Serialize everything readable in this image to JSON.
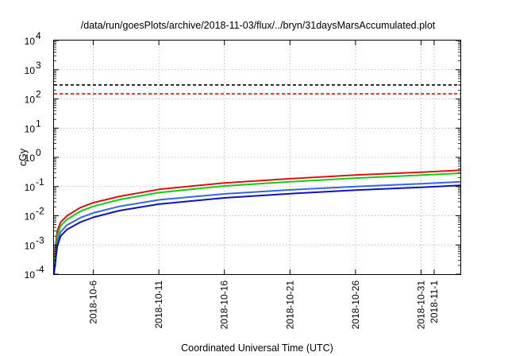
{
  "chart_data": {
    "type": "line",
    "title": "/data/run/goesPlots/archive/2018-11-03/flux/../bryn/31daysMarsAccumulated.plot",
    "xlabel": "Coordinated Universal Time (UTC)",
    "ylabel": "cGy",
    "y_scale": "log",
    "ylim": [
      0.0001,
      10000
    ],
    "xlim": [
      "2018-10-03",
      "2018-11-03"
    ],
    "grid": true,
    "y_ticks": [
      {
        "base": "10",
        "exp": "-4",
        "value": 0.0001
      },
      {
        "base": "10",
        "exp": "-3",
        "value": 0.001
      },
      {
        "base": "10",
        "exp": "-2",
        "value": 0.01
      },
      {
        "base": "10",
        "exp": "-1",
        "value": 0.1
      },
      {
        "base": "10",
        "exp": "0",
        "value": 1
      },
      {
        "base": "10",
        "exp": "1",
        "value": 10
      },
      {
        "base": "10",
        "exp": "2",
        "value": 100
      },
      {
        "base": "10",
        "exp": "3",
        "value": 1000
      },
      {
        "base": "10",
        "exp": "4",
        "value": 10000
      }
    ],
    "x_ticks": [
      {
        "label": "2018-10-6",
        "date": "2018-10-06"
      },
      {
        "label": "2018-10-11",
        "date": "2018-10-11"
      },
      {
        "label": "2018-10-16",
        "date": "2018-10-16"
      },
      {
        "label": "2018-10-21",
        "date": "2018-10-21"
      },
      {
        "label": "2018-10-26",
        "date": "2018-10-26"
      },
      {
        "label": "2018-10-31",
        "date": "2018-10-31"
      },
      {
        "label": "2018-11-1",
        "date": "2018-11-01"
      }
    ],
    "reference_lines": [
      {
        "value": 300,
        "color": "#000000",
        "style": "dashed"
      },
      {
        "value": 150,
        "color": "#ff0000",
        "style": "dashed"
      }
    ],
    "series": [
      {
        "color": "#dd1111",
        "points": [
          [
            "2018-10-03",
            0.0003
          ],
          [
            "2018-10-03T06:00",
            0.003
          ],
          [
            "2018-10-03T12:00",
            0.006
          ],
          [
            "2018-10-04",
            0.01
          ],
          [
            "2018-10-05",
            0.019
          ],
          [
            "2018-10-06",
            0.028
          ],
          [
            "2018-10-08",
            0.046
          ],
          [
            "2018-10-11",
            0.08
          ],
          [
            "2018-10-16",
            0.133
          ],
          [
            "2018-10-21",
            0.185
          ],
          [
            "2018-10-26",
            0.248
          ],
          [
            "2018-10-31",
            0.31
          ],
          [
            "2018-11-03",
            0.36
          ]
        ]
      },
      {
        "color": "#11cc11",
        "points": [
          [
            "2018-10-03",
            0.0002
          ],
          [
            "2018-10-03T06:00",
            0.002
          ],
          [
            "2018-10-03T12:00",
            0.0045
          ],
          [
            "2018-10-04",
            0.0075
          ],
          [
            "2018-10-05",
            0.014
          ],
          [
            "2018-10-06",
            0.021
          ],
          [
            "2018-10-08",
            0.036
          ],
          [
            "2018-10-11",
            0.062
          ],
          [
            "2018-10-16",
            0.105
          ],
          [
            "2018-10-21",
            0.145
          ],
          [
            "2018-10-26",
            0.195
          ],
          [
            "2018-10-31",
            0.245
          ],
          [
            "2018-11-03",
            0.285
          ]
        ]
      },
      {
        "color": "#3366ee",
        "points": [
          [
            "2018-10-03",
            0.00015
          ],
          [
            "2018-10-03T06:00",
            0.0013
          ],
          [
            "2018-10-03T12:00",
            0.0028
          ],
          [
            "2018-10-04",
            0.0048
          ],
          [
            "2018-10-05",
            0.0085
          ],
          [
            "2018-10-06",
            0.0125
          ],
          [
            "2018-10-08",
            0.021
          ],
          [
            "2018-10-11",
            0.035
          ],
          [
            "2018-10-16",
            0.056
          ],
          [
            "2018-10-21",
            0.077
          ],
          [
            "2018-10-26",
            0.1
          ],
          [
            "2018-10-31",
            0.125
          ],
          [
            "2018-11-03",
            0.145
          ]
        ]
      },
      {
        "color": "#1111bb",
        "points": [
          [
            "2018-10-03",
            0.0001
          ],
          [
            "2018-10-03T06:00",
            0.0009
          ],
          [
            "2018-10-03T12:00",
            0.002
          ],
          [
            "2018-10-04",
            0.0034
          ],
          [
            "2018-10-05",
            0.006
          ],
          [
            "2018-10-06",
            0.0088
          ],
          [
            "2018-10-08",
            0.015
          ],
          [
            "2018-10-11",
            0.025
          ],
          [
            "2018-10-16",
            0.041
          ],
          [
            "2018-10-21",
            0.057
          ],
          [
            "2018-10-26",
            0.075
          ],
          [
            "2018-10-31",
            0.094
          ],
          [
            "2018-11-03",
            0.11
          ]
        ]
      }
    ]
  }
}
